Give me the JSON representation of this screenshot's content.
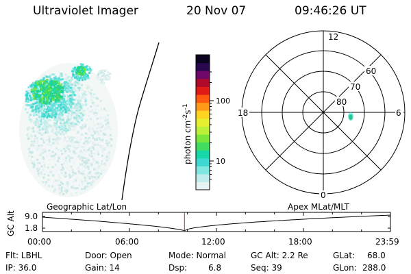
{
  "header": {
    "title": "Ultraviolet Imager",
    "date": "20 Nov 07",
    "time": "09:46:26 UT"
  },
  "colorbar": {
    "label": "photon cm",
    "label_exp1": "-2",
    "label_mid": "s",
    "label_exp2": "-1",
    "ticks": [
      {
        "label": "100",
        "value": 100
      },
      {
        "label": "10",
        "value": 10
      }
    ],
    "scale": "log",
    "colors": [
      "#e8f4f4",
      "#bfecec",
      "#7fe6e0",
      "#3dd8d0",
      "#16d8a8",
      "#40dc60",
      "#7ae63a",
      "#bdf03a",
      "#e6f030",
      "#ffd420",
      "#ff9a18",
      "#ff5a10",
      "#e01a14",
      "#b00a2a",
      "#70086a",
      "#2a0850",
      "#0a0420"
    ]
  },
  "polar_plot": {
    "clock_labels": {
      "top": "12",
      "right": "6",
      "bottom": "0",
      "left": "18"
    },
    "lat_labels": [
      "60",
      "70",
      "80"
    ],
    "coordinate_system": "Apex MLat/MLT"
  },
  "footprint": {
    "label_left": "Geographic Lat/Lon",
    "label_right": "Apex MLat/MLT"
  },
  "altitude_track": {
    "ylabel": "GC Alt",
    "ytick_top": "9.0",
    "ytick_bottom": "1.8",
    "xticks": [
      "00:00",
      "06:00",
      "12:00",
      "18:00",
      "23:59"
    ],
    "current_time_fraction": 0.4081,
    "marker_color": "#c0283c"
  },
  "info": {
    "filter": "Flt: LBHL",
    "ip": "IP: 36.0",
    "door": "Door: Open",
    "gain": "Gain: 14",
    "mode": "Mode: Normal",
    "dsp": "Dsp:",
    "dsp_value": "6.8",
    "gc_alt": "GC Alt: 2.2 Re",
    "seq": "Seq: 39",
    "glat": "GLat:",
    "glat_value": "68.0",
    "glon": "GLon:",
    "glon_value": "288.0"
  }
}
